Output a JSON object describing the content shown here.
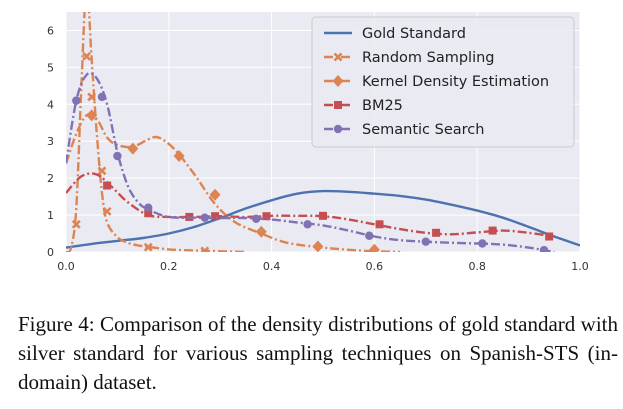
{
  "caption": "Figure 4:  Comparison of the density distributions of gold standard with silver standard for various sampling techniques on Spanish-STS (in-domain) dataset.",
  "chart_data": {
    "type": "line",
    "title": "",
    "xlabel": "",
    "ylabel": "",
    "xlim": [
      0.0,
      1.0
    ],
    "ylim": [
      0,
      6.5
    ],
    "xticks": [
      "0.0",
      "0.2",
      "0.4",
      "0.6",
      "0.8",
      "1.0"
    ],
    "yticks": [
      "0",
      "1",
      "2",
      "3",
      "4",
      "5",
      "6"
    ],
    "grid": true,
    "legend_position": "upper right",
    "background": "#eaeaf2",
    "series": [
      {
        "name": "Gold Standard",
        "color": "#4c72b0",
        "linestyle": "solid",
        "marker": "none",
        "x": [
          0.0,
          0.05,
          0.1,
          0.15,
          0.2,
          0.25,
          0.3,
          0.35,
          0.4,
          0.45,
          0.5,
          0.55,
          0.6,
          0.65,
          0.7,
          0.75,
          0.8,
          0.85,
          0.9,
          0.95,
          1.0
        ],
        "y": [
          0.12,
          0.22,
          0.3,
          0.38,
          0.5,
          0.68,
          0.92,
          1.18,
          1.4,
          1.58,
          1.65,
          1.63,
          1.58,
          1.52,
          1.42,
          1.28,
          1.12,
          0.93,
          0.68,
          0.42,
          0.18
        ]
      },
      {
        "name": "Random Sampling",
        "color": "#dd8452",
        "linestyle": "dashdot",
        "marker": "x",
        "x": [
          0.0,
          0.01,
          0.02,
          0.03,
          0.04,
          0.05,
          0.06,
          0.07,
          0.08,
          0.1,
          0.12,
          0.14,
          0.16,
          0.2,
          0.25,
          0.3,
          0.35
        ],
        "y": [
          0.0,
          0.12,
          1.2,
          4.5,
          7.2,
          5.2,
          3.2,
          1.6,
          0.8,
          0.4,
          0.25,
          0.18,
          0.14,
          0.07,
          0.04,
          0.02,
          0.0
        ],
        "marker_x": [
          0.02,
          0.04,
          0.05,
          0.07,
          0.08,
          0.16,
          0.27
        ],
        "marker_y": [
          0.75,
          5.3,
          4.2,
          2.2,
          1.1,
          0.13,
          0.03
        ]
      },
      {
        "name": "Kernel Density Estimation",
        "color": "#dd8452",
        "linestyle": "dashdot",
        "marker": "diamond",
        "x": [
          0.0,
          0.02,
          0.04,
          0.06,
          0.08,
          0.1,
          0.13,
          0.16,
          0.18,
          0.21,
          0.25,
          0.29,
          0.33,
          0.38,
          0.43,
          0.5,
          0.55,
          0.6,
          0.65
        ],
        "y": [
          2.4,
          3.2,
          3.7,
          3.6,
          3.1,
          2.9,
          2.85,
          3.05,
          3.1,
          2.8,
          2.1,
          1.3,
          0.8,
          0.5,
          0.25,
          0.12,
          0.06,
          0.02,
          0.0
        ],
        "marker_x": [
          0.05,
          0.13,
          0.22,
          0.29,
          0.38,
          0.49,
          0.6
        ],
        "marker_y": [
          3.7,
          2.8,
          2.6,
          1.55,
          0.55,
          0.15,
          0.06
        ]
      },
      {
        "name": "BM25",
        "color": "#c44e52",
        "linestyle": "dashdot",
        "marker": "square",
        "x": [
          0.0,
          0.03,
          0.06,
          0.09,
          0.12,
          0.16,
          0.2,
          0.25,
          0.3,
          0.35,
          0.4,
          0.45,
          0.5,
          0.55,
          0.6,
          0.65,
          0.7,
          0.75,
          0.8,
          0.85,
          0.9,
          0.95
        ],
        "y": [
          1.6,
          2.05,
          2.1,
          1.75,
          1.35,
          1.0,
          0.95,
          0.95,
          0.97,
          0.95,
          0.98,
          0.98,
          0.97,
          0.88,
          0.75,
          0.62,
          0.52,
          0.48,
          0.53,
          0.58,
          0.52,
          0.42
        ],
        "marker_x": [
          0.08,
          0.16,
          0.24,
          0.29,
          0.39,
          0.5,
          0.61,
          0.72,
          0.83,
          0.94
        ],
        "marker_y": [
          1.8,
          1.05,
          0.95,
          0.97,
          0.97,
          0.98,
          0.75,
          0.52,
          0.58,
          0.42
        ]
      },
      {
        "name": "Semantic Search",
        "color": "#8172b3",
        "linestyle": "dashdot",
        "marker": "circle",
        "x": [
          0.0,
          0.02,
          0.04,
          0.06,
          0.08,
          0.1,
          0.12,
          0.14,
          0.16,
          0.2,
          0.25,
          0.3,
          0.35,
          0.4,
          0.45,
          0.5,
          0.55,
          0.6,
          0.65,
          0.7,
          0.75,
          0.8,
          0.85,
          0.9,
          0.95
        ],
        "y": [
          2.4,
          4.1,
          4.8,
          4.7,
          4.0,
          2.7,
          1.8,
          1.35,
          1.15,
          0.95,
          0.93,
          0.92,
          0.92,
          0.88,
          0.8,
          0.72,
          0.58,
          0.42,
          0.32,
          0.28,
          0.25,
          0.23,
          0.2,
          0.12,
          0.0
        ],
        "marker_x": [
          0.02,
          0.07,
          0.1,
          0.16,
          0.27,
          0.37,
          0.47,
          0.59,
          0.7,
          0.81,
          0.93
        ],
        "marker_y": [
          4.1,
          4.2,
          2.6,
          1.2,
          0.93,
          0.9,
          0.75,
          0.44,
          0.28,
          0.23,
          0.05
        ]
      }
    ]
  }
}
